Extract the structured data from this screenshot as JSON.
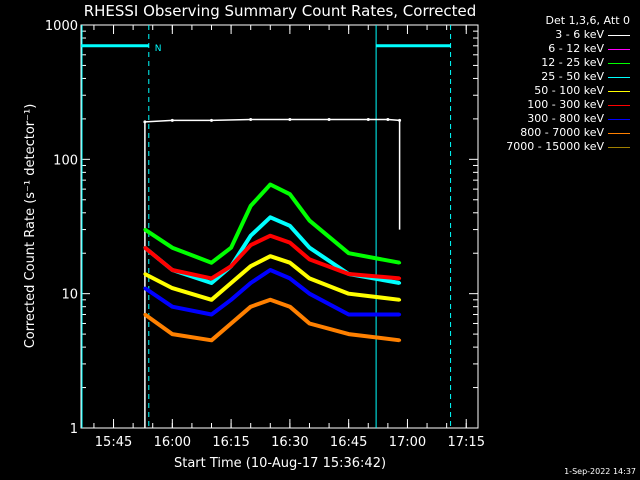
{
  "chart_data": {
    "type": "line",
    "title": "RHESSI Observing Summary Count Rates, Corrected",
    "ylabel": "Corrected Count Rate (s⁻¹ detector⁻¹)",
    "xlabel": "Start Time (10-Aug-17 15:36:42)",
    "y_scale": "log",
    "ylim": [
      1,
      1000
    ],
    "xlim": [
      "15:36:42",
      "17:18:00"
    ],
    "y_ticks": [
      "1",
      "10",
      "100",
      "1000"
    ],
    "x_ticks": [
      "15:45",
      "16:00",
      "16:15",
      "16:30",
      "16:45",
      "17:00",
      "17:15"
    ],
    "legend_header": "Det 1,3,6, Att 0",
    "legend_position": "right",
    "annotation_N": "N",
    "series": [
      {
        "name": "3 - 6 keV",
        "color": "#ffffff",
        "x": [
          "15:53",
          "16:00",
          "16:10",
          "16:20",
          "16:30",
          "16:40",
          "16:50",
          "16:55",
          "16:58"
        ],
        "y": [
          190,
          195,
          195,
          198,
          198,
          198,
          198,
          198,
          195
        ]
      },
      {
        "name": "6 - 12 keV",
        "color": "#ff00ff",
        "x": [],
        "y": []
      },
      {
        "name": "12 - 25 keV",
        "color": "#00ff00",
        "x": [
          "15:53",
          "16:00",
          "16:10",
          "16:15",
          "16:20",
          "16:25",
          "16:30",
          "16:35",
          "16:45",
          "16:58"
        ],
        "y": [
          30,
          22,
          17,
          22,
          45,
          65,
          55,
          35,
          20,
          17
        ]
      },
      {
        "name": "25 - 50 keV",
        "color": "#00ffff",
        "x": [
          "15:53",
          "16:00",
          "16:10",
          "16:15",
          "16:20",
          "16:25",
          "16:30",
          "16:35",
          "16:45",
          "16:58"
        ],
        "y": [
          22,
          15,
          12,
          16,
          27,
          37,
          32,
          22,
          14,
          12
        ]
      },
      {
        "name": "50 - 100 keV",
        "color": "#ffff00",
        "x": [
          "15:53",
          "16:00",
          "16:10",
          "16:15",
          "16:20",
          "16:25",
          "16:30",
          "16:35",
          "16:45",
          "16:58"
        ],
        "y": [
          14,
          11,
          9,
          12,
          16,
          19,
          17,
          13,
          10,
          9
        ]
      },
      {
        "name": "100 - 300 keV",
        "color": "#ff0000",
        "x": [
          "15:53",
          "16:00",
          "16:10",
          "16:15",
          "16:20",
          "16:25",
          "16:30",
          "16:35",
          "16:45",
          "16:58"
        ],
        "y": [
          22,
          15,
          13,
          16,
          23,
          27,
          24,
          18,
          14,
          13
        ]
      },
      {
        "name": "300 - 800 keV",
        "color": "#0000ff",
        "x": [
          "15:53",
          "16:00",
          "16:10",
          "16:15",
          "16:20",
          "16:25",
          "16:30",
          "16:35",
          "16:45",
          "16:58"
        ],
        "y": [
          11,
          8,
          7,
          9,
          12,
          15,
          13,
          10,
          7,
          7
        ]
      },
      {
        "name": "800 - 7000 keV",
        "color": "#ff8000",
        "x": [
          "15:53",
          "16:00",
          "16:10",
          "16:15",
          "16:20",
          "16:25",
          "16:30",
          "16:35",
          "16:45",
          "16:58"
        ],
        "y": [
          7,
          5,
          4.5,
          6,
          8,
          9,
          8,
          6,
          5,
          4.5
        ]
      },
      {
        "name": "7000 - 15000 keV",
        "color": "#a08000",
        "x": [],
        "y": []
      }
    ]
  },
  "timestamp": "1-Sep-2022 14:37"
}
